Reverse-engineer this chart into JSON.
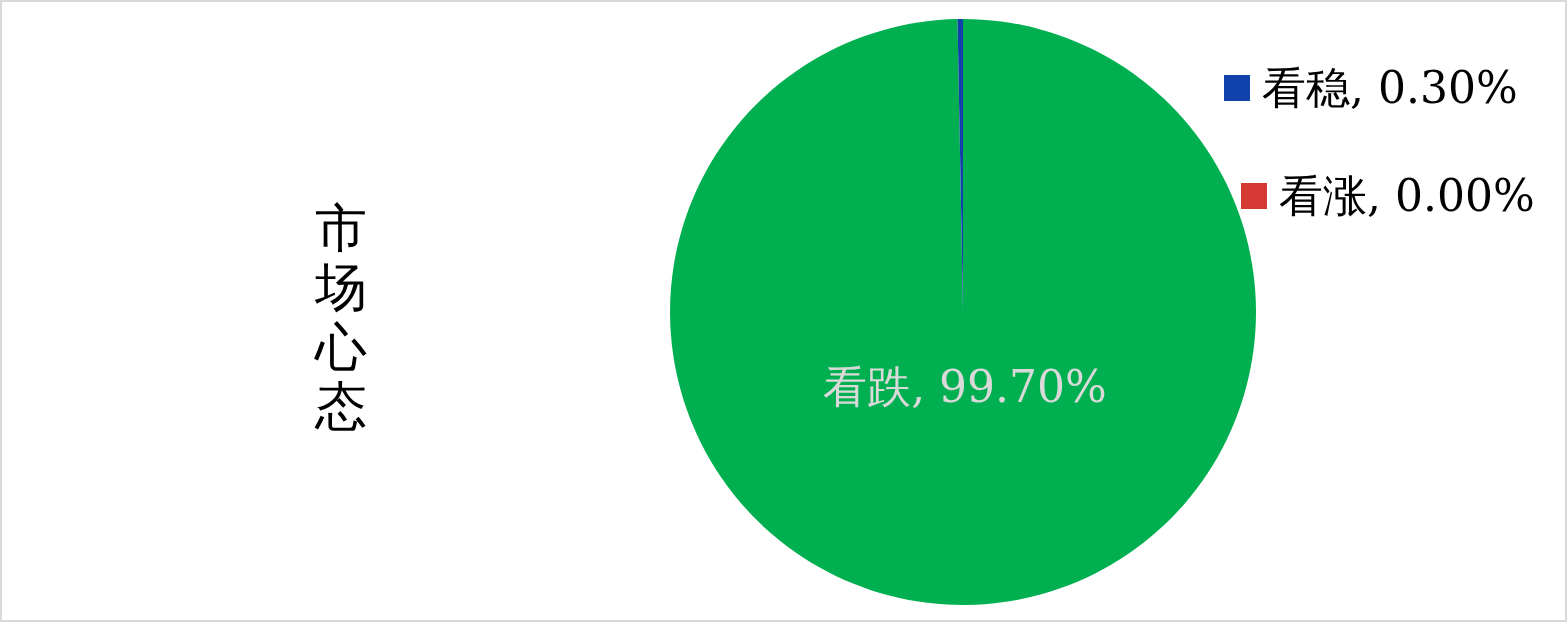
{
  "chart_data": {
    "type": "pie",
    "title": "市场心态",
    "categories": [
      "看跌",
      "看稳",
      "看涨"
    ],
    "values": [
      99.7,
      0.3,
      0.0
    ],
    "colors": [
      "#00b050",
      "#1141ab",
      "#d43a33"
    ],
    "value_labels": [
      "99.70%",
      "0.30%",
      "0.00%"
    ]
  }
}
